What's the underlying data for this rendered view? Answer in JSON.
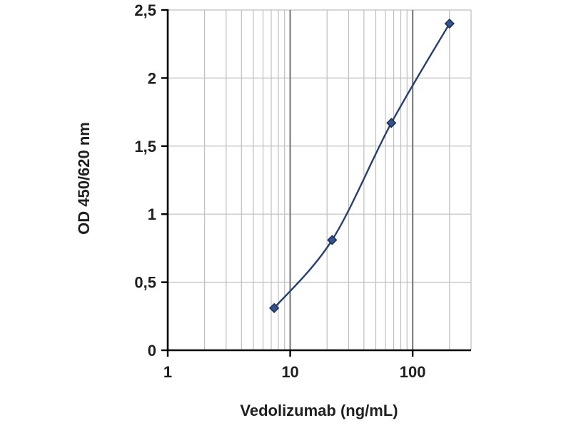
{
  "chart_data": {
    "type": "line",
    "title": "",
    "xlabel": "Vedolizumab (ng/mL)",
    "ylabel": "OD 450/620 nm",
    "x_scale": "log",
    "x": [
      7.4,
      22,
      67,
      200
    ],
    "y": [
      0.31,
      0.81,
      1.67,
      2.4
    ],
    "xlim": [
      1,
      300
    ],
    "ylim": [
      0,
      2.5
    ],
    "x_tick_values": [
      1,
      10,
      100
    ],
    "x_tick_labels": [
      "1",
      "10",
      "100"
    ],
    "y_tick_values": [
      0,
      0.5,
      1,
      1.5,
      2,
      2.5
    ],
    "y_tick_labels": [
      "0",
      "0,5",
      "1",
      "1,5",
      "2",
      "2,5"
    ],
    "grid": true,
    "legend": "none",
    "colors": {
      "line": "#27406e",
      "marker_fill": "#35538f",
      "marker_stroke": "#1e3154",
      "minor_grid": "#bfbfbf",
      "major_grid": "#7f7f7f",
      "axis": "#000000",
      "text": "#1f1f1f"
    }
  }
}
